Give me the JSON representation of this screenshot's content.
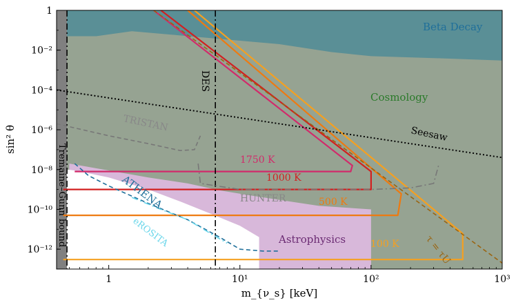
{
  "chart_data": {
    "type": "line",
    "title": "",
    "xlabel": "m_{ν_s} [keV]",
    "ylabel": "sin² θ",
    "xscale": "log",
    "yscale": "log",
    "xlim": [
      0.4,
      1000
    ],
    "ylim": [
      1e-13,
      1
    ],
    "x_ticks": [
      {
        "value": 1,
        "label": "1"
      },
      {
        "value": 10,
        "label": "10¹"
      },
      {
        "value": 100,
        "label": "10²"
      },
      {
        "value": 1000,
        "label": "10³"
      }
    ],
    "y_ticks": [
      {
        "value": 1,
        "label": "1"
      },
      {
        "value": 0.01,
        "label": "10⁻²"
      },
      {
        "value": 0.0001,
        "label": "10⁻⁴"
      },
      {
        "value": 1e-06,
        "label": "10⁻⁶"
      },
      {
        "value": 1e-08,
        "label": "10⁻⁸"
      },
      {
        "value": 1e-10,
        "label": "10⁻¹⁰"
      },
      {
        "value": 1e-12,
        "label": "10⁻¹²"
      }
    ],
    "regions": [
      {
        "name": "Beta Decay",
        "color": "#5a8f96",
        "boundary": [
          [
            0.4,
            0.05
          ],
          [
            0.8,
            0.05
          ],
          [
            1.5,
            0.09
          ],
          [
            3,
            0.06
          ],
          [
            6,
            0.04
          ],
          [
            20,
            0.02
          ],
          [
            50,
            0.008
          ],
          [
            100,
            0.005
          ],
          [
            300,
            0.004
          ],
          [
            1000,
            0.003
          ]
        ]
      },
      {
        "name": "Cosmology",
        "color": "#96a392",
        "boundary": [
          [
            0.4,
            1e-13
          ],
          [
            1000,
            1e-13
          ],
          [
            1000,
            0.003
          ]
        ]
      },
      {
        "name": "Astrophysics",
        "color": "#d8b8da",
        "boundary": [
          [
            0.5,
            2e-08
          ],
          [
            1,
            9e-09
          ],
          [
            2,
            4e-09
          ],
          [
            4,
            2e-09
          ],
          [
            7,
            9e-10
          ],
          [
            12,
            5e-10
          ],
          [
            20,
            3e-10
          ],
          [
            40,
            1.5e-10
          ],
          [
            100,
            1e-10
          ]
        ]
      },
      {
        "name": "Tremaine-Gunn bound",
        "color": "#808080",
        "x_max": 0.48
      }
    ],
    "series": [
      {
        "name": "1750 K",
        "color": "#d22a6a",
        "x": [
          0.55,
          70,
          72,
          2.2,
          2.2
        ],
        "y": [
          8e-09,
          8e-09,
          1.6e-08,
          1,
          1
        ]
      },
      {
        "name": "1000 K",
        "color": "#d22020",
        "x": [
          0.45,
          100,
          100,
          2.5,
          2.5
        ],
        "y": [
          1e-09,
          1e-09,
          8e-09,
          1,
          1
        ]
      },
      {
        "name": "500 K",
        "color": "#ee7a10",
        "x": [
          0.45,
          160,
          170,
          4,
          4
        ],
        "y": [
          5e-11,
          5e-11,
          6e-10,
          1,
          1
        ]
      },
      {
        "name": "100 K",
        "color": "#f5a020",
        "x": [
          0.45,
          500,
          500,
          4.5,
          4.5
        ],
        "y": [
          3e-13,
          3e-13,
          6e-12,
          1,
          1
        ]
      },
      {
        "name": "τ = τ_U",
        "color": "#9a6410",
        "style": "dashed",
        "x": [
          2.2,
          1000
        ],
        "y": [
          1,
          2e-13
        ]
      },
      {
        "name": "Seesaw",
        "color": "#000000",
        "style": "dotted",
        "x": [
          0.4,
          1000
        ],
        "y": [
          0.0001,
          4e-08
        ]
      },
      {
        "name": "DES",
        "color": "#000000",
        "style": "dashdot",
        "x": [
          6.5,
          6.5
        ],
        "y": [
          1,
          1e-13
        ]
      },
      {
        "name": "Tremaine-Gunn edge",
        "color": "#000000",
        "style": "dashdot",
        "x": [
          0.48,
          0.48
        ],
        "y": [
          1,
          1e-13
        ]
      },
      {
        "name": "TRISTAN",
        "color": "#777777",
        "style": "dashed",
        "x": [
          0.4,
          1,
          2,
          3.5,
          4.5,
          5
        ],
        "y": [
          2e-06,
          5e-07,
          2e-07,
          9e-08,
          1e-07,
          5e-07
        ]
      },
      {
        "name": "HUNTER",
        "color": "#777777",
        "style": "dashdot",
        "x": [
          4.8,
          5,
          10,
          100,
          200,
          300,
          330
        ],
        "y": [
          2e-08,
          2e-09,
          1e-09,
          1e-09,
          1.2e-09,
          2e-09,
          2e-08
        ]
      },
      {
        "name": "ATHENA",
        "color": "#1f6f9a",
        "style": "dashed",
        "x": [
          0.55,
          0.7,
          1,
          2,
          4,
          7,
          10,
          15,
          20
        ],
        "y": [
          2e-08,
          5e-09,
          1.5e-09,
          2e-10,
          3e-11,
          4e-12,
          1e-12,
          8e-13,
          8e-13
        ]
      },
      {
        "name": "eROSITA",
        "color": "#6ad6ea",
        "style": "dashdot",
        "x": [
          1.5,
          2.5,
          4,
          6,
          8
        ],
        "y": [
          4e-10,
          1e-10,
          3e-11,
          6e-12,
          2e-12
        ]
      }
    ],
    "labels": {
      "beta_decay": "Beta Decay",
      "cosmology": "Cosmology",
      "astrophysics": "Astrophysics",
      "tristan": "TRISTAN",
      "hunter": "HUNTER",
      "athena": "ATHENA",
      "erosita": "eROSITA",
      "des": "DES",
      "seesaw": "Seesaw",
      "tremaine_gunn": "Tremaine–Gunn bound",
      "t1750": "1750 K",
      "t1000": "1000 K",
      "t500": "500 K",
      "t100": "100 K",
      "tau": "τ = τU"
    }
  }
}
